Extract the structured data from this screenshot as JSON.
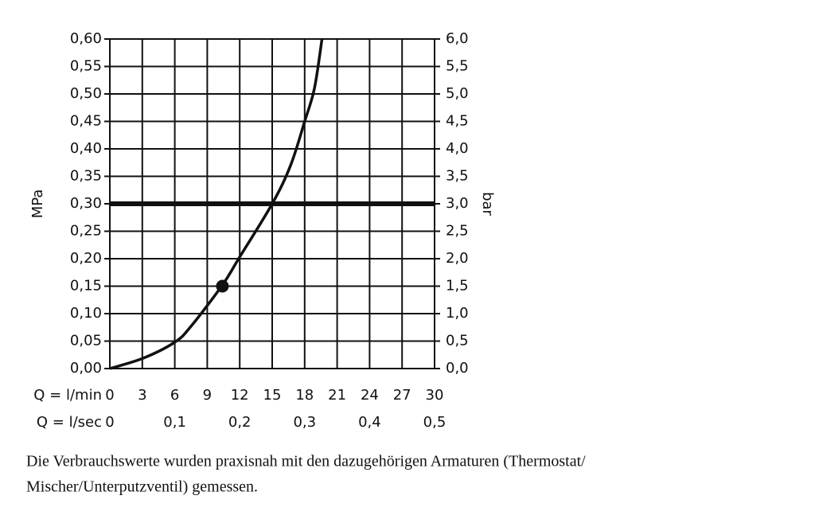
{
  "chart_data": {
    "type": "line",
    "x_label": "Q = l/min",
    "x2_label": "Q = l/sec",
    "y_label": "MPa",
    "y2_label": "bar",
    "xlim": [
      0,
      30
    ],
    "xticks": [
      0,
      3,
      6,
      9,
      12,
      15,
      18,
      21,
      24,
      27,
      30
    ],
    "x2lim": [
      0,
      0.5
    ],
    "x2ticks": [
      0,
      {
        "value": 0.1,
        "label": "0,1"
      },
      {
        "value": 0.2,
        "label": "0,2"
      },
      {
        "value": 0.3,
        "label": "0,3"
      },
      {
        "value": 0.4,
        "label": "0,4"
      },
      {
        "value": 0.5,
        "label": "0,5"
      }
    ],
    "ylim": [
      0,
      0.6
    ],
    "yticks": [
      {
        "value": 0,
        "label": "0,00"
      },
      {
        "value": 0.05,
        "label": "0,05"
      },
      {
        "value": 0.1,
        "label": "0,10"
      },
      {
        "value": 0.15,
        "label": "0,15"
      },
      {
        "value": 0.2,
        "label": "0,20"
      },
      {
        "value": 0.25,
        "label": "0,25"
      },
      {
        "value": 0.3,
        "label": "0,30"
      },
      {
        "value": 0.35,
        "label": "0,35"
      },
      {
        "value": 0.4,
        "label": "0,40"
      },
      {
        "value": 0.45,
        "label": "0,45"
      },
      {
        "value": 0.5,
        "label": "0,50"
      },
      {
        "value": 0.55,
        "label": "0,55"
      },
      {
        "value": 0.6,
        "label": "0,60"
      }
    ],
    "y2lim": [
      0,
      6
    ],
    "y2ticks": [
      {
        "value": 0,
        "label": "0,0"
      },
      {
        "value": 0.5,
        "label": "0,5"
      },
      {
        "value": 1,
        "label": "1,0"
      },
      {
        "value": 1.5,
        "label": "1,5"
      },
      {
        "value": 2,
        "label": "2,0"
      },
      {
        "value": 2.5,
        "label": "2,5"
      },
      {
        "value": 3,
        "label": "3,0"
      },
      {
        "value": 3.5,
        "label": "3,5"
      },
      {
        "value": 4,
        "label": "4,0"
      },
      {
        "value": 4.5,
        "label": "4,5"
      },
      {
        "value": 5,
        "label": "5,0"
      },
      {
        "value": 5.5,
        "label": "5,5"
      },
      {
        "value": 6,
        "label": "6,0"
      }
    ],
    "grid": true,
    "color": "#111111",
    "curve": {
      "x": [
        0,
        3.1,
        6,
        7.5,
        10.4,
        11.9,
        15,
        16.7,
        18,
        18.9,
        19.6
      ],
      "values": [
        0,
        0.019,
        0.048,
        0.077,
        0.152,
        0.2,
        0.3,
        0.37,
        0.45,
        0.51,
        0.6
      ]
    },
    "marker": {
      "x": 10.4,
      "y": 0.15
    },
    "reference": {
      "x": 15,
      "y": 0.3
    },
    "caption": [
      "Die Verbrauchswerte wurden praxisnah mit den dazugehörigen Armaturen (Thermostat/",
      "Mischer/Unterputzventil) gemessen."
    ]
  }
}
